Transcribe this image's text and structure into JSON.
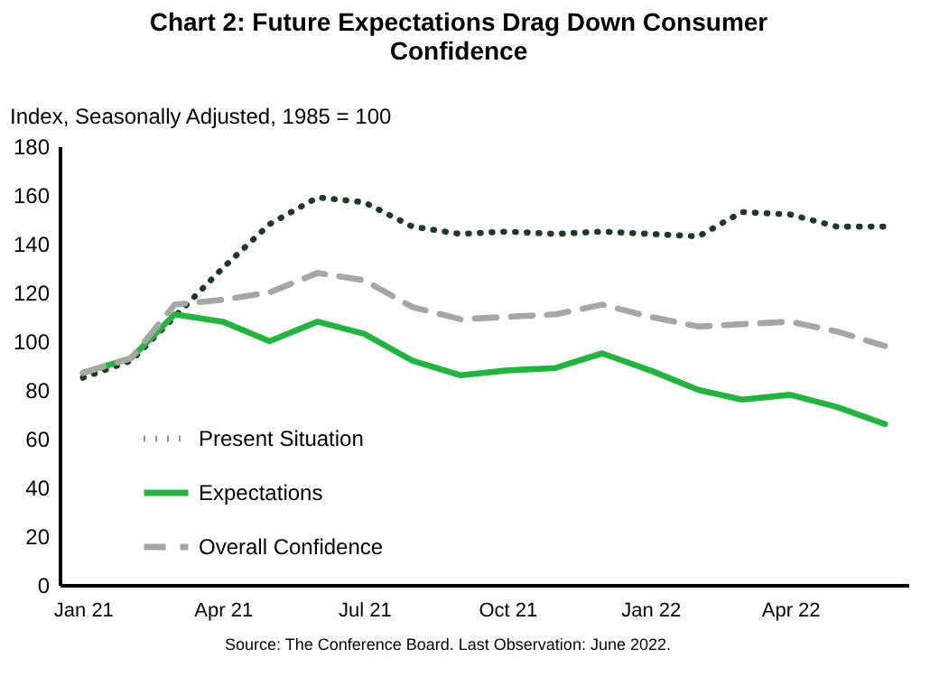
{
  "chart_data": {
    "type": "line",
    "title": "Chart 2: Future Expectations Drag Down Consumer Confidence",
    "ylabel": "Index, Seasonally Adjusted, 1985 = 100",
    "x": [
      "2021-01",
      "2021-02",
      "2021-03",
      "2021-04",
      "2021-05",
      "2021-06",
      "2021-07",
      "2021-08",
      "2021-09",
      "2021-10",
      "2021-11",
      "2021-12",
      "2022-01",
      "2022-02",
      "2022-03",
      "2022-04",
      "2022-05",
      "2022-06"
    ],
    "series": [
      {
        "name": "Present Situation",
        "color": "#1b3a28",
        "line_style": "dotted",
        "values": [
          85,
          92,
          110,
          130,
          148,
          159,
          157,
          147,
          144,
          145,
          144,
          145,
          144,
          143,
          153,
          152,
          147,
          147
        ]
      },
      {
        "name": "Expectations",
        "color": "#1db83a",
        "line_style": "solid",
        "values": [
          87,
          93,
          111,
          108,
          100,
          108,
          103,
          92,
          86,
          88,
          89,
          95,
          88,
          80,
          76,
          78,
          73,
          66
        ]
      },
      {
        "name": "Overall Confidence",
        "color": "#a6a6a6",
        "line_style": "dashed",
        "values": [
          87,
          93,
          115,
          117,
          120,
          128,
          125,
          114,
          109,
          110,
          111,
          115,
          110,
          106,
          107,
          108,
          104,
          98
        ]
      }
    ],
    "xlim": [
      "2020-12-17",
      "2022-06-16"
    ],
    "xticks": [
      {
        "value": "2021-01",
        "label": "Jan 21"
      },
      {
        "value": "2021-04",
        "label": "Apr 21"
      },
      {
        "value": "2021-07",
        "label": "Jul 21"
      },
      {
        "value": "2021-10",
        "label": "Oct 21"
      },
      {
        "value": "2022-01",
        "label": "Jan 22"
      },
      {
        "value": "2022-04",
        "label": "Apr 22"
      }
    ],
    "ylim": [
      0,
      180
    ],
    "yticks": [
      0,
      20,
      40,
      60,
      80,
      100,
      120,
      140,
      160,
      180
    ],
    "grid": false,
    "legend": "left",
    "marker": "none",
    "annotations": [
      "Source: The Conference Board. Last Observation: June 2022."
    ]
  }
}
